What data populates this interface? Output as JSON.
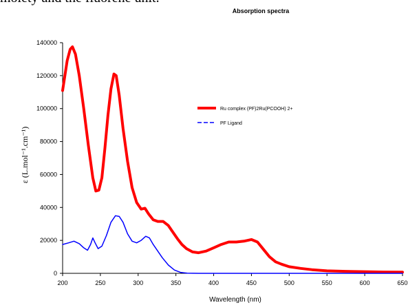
{
  "page_text": {
    "caption_fragment": "moiety and the fluorene unit."
  },
  "chart_data": {
    "type": "line",
    "title": "Absorption spectra",
    "xlabel": "Wavelength (nm)",
    "ylabel": "ε (L.mol⁻¹.cm⁻¹)",
    "xlim": [
      200,
      650
    ],
    "ylim": [
      0,
      140000
    ],
    "x_ticks": [
      "200",
      "250",
      "300",
      "350",
      "400",
      "450",
      "500",
      "550",
      "600",
      "650"
    ],
    "y_ticks": [
      "0",
      "20000",
      "40000",
      "60000",
      "80000",
      "100000",
      "120000",
      "140000"
    ],
    "grid": false,
    "legend_position": "right",
    "series": [
      {
        "name": "Ru complex (PF)2Ru(PCOOH) 2+",
        "color": "#ff0000",
        "style": "solid",
        "points": [
          [
            200,
            111000
          ],
          [
            203,
            120000
          ],
          [
            206,
            129000
          ],
          [
            210,
            136000
          ],
          [
            213,
            137500
          ],
          [
            217,
            133000
          ],
          [
            222,
            120000
          ],
          [
            228,
            100000
          ],
          [
            234,
            78000
          ],
          [
            240,
            58000
          ],
          [
            244,
            50000
          ],
          [
            248,
            50500
          ],
          [
            252,
            58000
          ],
          [
            256,
            76000
          ],
          [
            260,
            96000
          ],
          [
            264,
            112000
          ],
          [
            268,
            121000
          ],
          [
            271,
            120000
          ],
          [
            275,
            108000
          ],
          [
            280,
            88000
          ],
          [
            286,
            68000
          ],
          [
            292,
            52000
          ],
          [
            298,
            43000
          ],
          [
            304,
            39000
          ],
          [
            309,
            39500
          ],
          [
            314,
            36000
          ],
          [
            320,
            32500
          ],
          [
            326,
            31500
          ],
          [
            333,
            31500
          ],
          [
            340,
            29000
          ],
          [
            346,
            25000
          ],
          [
            352,
            21000
          ],
          [
            358,
            17500
          ],
          [
            364,
            15000
          ],
          [
            372,
            13000
          ],
          [
            380,
            12500
          ],
          [
            390,
            13500
          ],
          [
            400,
            15500
          ],
          [
            410,
            17500
          ],
          [
            420,
            19000
          ],
          [
            430,
            19000
          ],
          [
            440,
            19500
          ],
          [
            450,
            20500
          ],
          [
            458,
            19000
          ],
          [
            466,
            14500
          ],
          [
            474,
            10000
          ],
          [
            482,
            7000
          ],
          [
            490,
            5500
          ],
          [
            500,
            4000
          ],
          [
            515,
            3000
          ],
          [
            530,
            2200
          ],
          [
            550,
            1500
          ],
          [
            575,
            1200
          ],
          [
            600,
            1000
          ],
          [
            625,
            800
          ],
          [
            650,
            700
          ]
        ]
      },
      {
        "name": "PF Ligand",
        "color": "#0000ff",
        "style": "dashed",
        "points": [
          [
            200,
            17500
          ],
          [
            208,
            18500
          ],
          [
            215,
            19500
          ],
          [
            222,
            18000
          ],
          [
            228,
            15500
          ],
          [
            233,
            14000
          ],
          [
            237,
            17500
          ],
          [
            240,
            21500
          ],
          [
            243,
            18500
          ],
          [
            247,
            15000
          ],
          [
            252,
            16500
          ],
          [
            258,
            23000
          ],
          [
            264,
            31000
          ],
          [
            270,
            35000
          ],
          [
            275,
            34500
          ],
          [
            280,
            31000
          ],
          [
            286,
            24000
          ],
          [
            292,
            19500
          ],
          [
            298,
            18500
          ],
          [
            304,
            20000
          ],
          [
            310,
            22500
          ],
          [
            315,
            21500
          ],
          [
            320,
            17500
          ],
          [
            326,
            13500
          ],
          [
            332,
            9500
          ],
          [
            340,
            5000
          ],
          [
            348,
            2000
          ],
          [
            356,
            600
          ],
          [
            365,
            100
          ],
          [
            380,
            0
          ],
          [
            420,
            0
          ],
          [
            480,
            0
          ],
          [
            540,
            0
          ],
          [
            600,
            0
          ],
          [
            650,
            0
          ]
        ]
      }
    ]
  }
}
